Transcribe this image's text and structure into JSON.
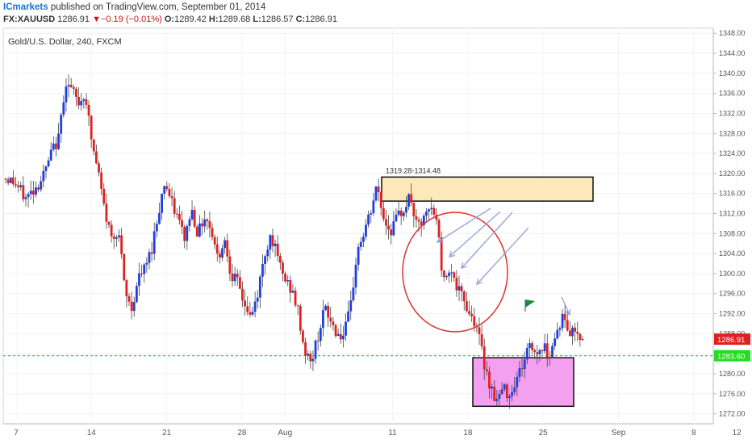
{
  "header": {
    "brand": "ICmarkets",
    "publish_text": "published on TradingView.com, September 01, 2014",
    "symbol": "FX:XAUUSD",
    "last": "1286.91",
    "change": "−0.19 (−0.01%)",
    "open_label": "O:",
    "open": "1289.42",
    "high_label": "H:",
    "high": "1289.68",
    "low_label": "L:",
    "low": "1286.57",
    "close_label": "C:",
    "close": "1286.91"
  },
  "colors": {
    "up": "#1f3fe0",
    "down": "#e02020",
    "support_line": "#22dd22",
    "supply_zone": "#fce8b8",
    "demand_zone": "#f4a0f0",
    "circle": "#e03030",
    "arrow": "#9aa4d8",
    "flag": "#1f8a3a"
  },
  "chart_data": {
    "type": "candlestick",
    "title": "Gold/U.S. Dollar, 240, FXCM",
    "ylim": [
      1270,
      1349
    ],
    "y_ticks": [
      "1348.00",
      "1344.00",
      "1340.00",
      "1336.00",
      "1332.00",
      "1328.00",
      "1324.00",
      "1320.00",
      "1316.00",
      "1312.00",
      "1308.00",
      "1304.00",
      "1300.00",
      "1296.00",
      "1292.00",
      "1288.00",
      "1284.00",
      "1280.00",
      "1276.00",
      "1272.00"
    ],
    "x_ticks": [
      "7",
      "14",
      "21",
      "28",
      "Aug",
      "11",
      "18",
      "25",
      "Sep",
      "8",
      "12"
    ],
    "last_price_label": "1286.91",
    "support_level": 1283.6,
    "support_label": "1283.60",
    "supply_zone": {
      "label": "1319.28-1314.48",
      "low": 1314.48,
      "high": 1319.28
    },
    "demand_zone": {
      "low": 1273.5,
      "high": 1283.2
    },
    "close_path": [
      1319.0,
      1318.5,
      1317.0,
      1315.0,
      1316.5,
      1318.0,
      1320.5,
      1324.5,
      1327.0,
      1338.5,
      1336.5,
      1334.0,
      1336.0,
      1326.0,
      1320.0,
      1312.0,
      1307.0,
      1309.0,
      1296.0,
      1293.0,
      1299.0,
      1301.0,
      1305.0,
      1312.0,
      1318.5,
      1314.0,
      1311.0,
      1307.0,
      1313.0,
      1308.0,
      1311.5,
      1309.0,
      1303.0,
      1307.0,
      1300.0,
      1298.0,
      1294.0,
      1291.0,
      1296.0,
      1303.5,
      1308.0,
      1303.0,
      1299.0,
      1297.0,
      1293.0,
      1285.0,
      1282.0,
      1287.0,
      1293.0,
      1290.5,
      1288.0,
      1287.5,
      1293.0,
      1304.5,
      1308.0,
      1312.0,
      1317.5,
      1311.0,
      1308.5,
      1311.0,
      1313.0,
      1315.5,
      1309.0,
      1310.5,
      1313.0,
      1311.0,
      1298.0,
      1302.0,
      1297.0,
      1295.0,
      1292.0,
      1290.0,
      1283.0,
      1278.0,
      1274.5,
      1277.0,
      1276.0,
      1279.0,
      1282.0,
      1286.0,
      1284.0,
      1285.5,
      1284.0,
      1288.0,
      1291.5,
      1288.0,
      1289.0,
      1286.91
    ]
  }
}
